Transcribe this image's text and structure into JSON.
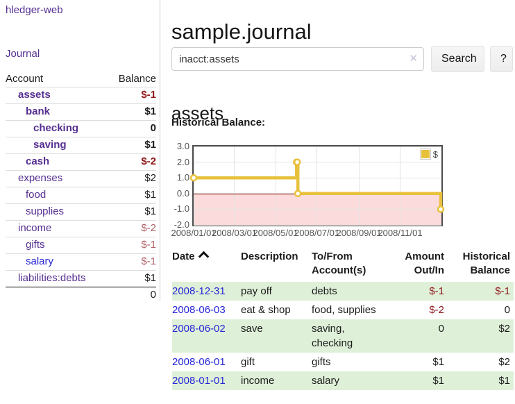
{
  "app": {
    "title": "hledger-web"
  },
  "sidebar": {
    "journal_link": "Journal",
    "balance_table": {
      "headers": {
        "account": "Account",
        "balance": "Balance"
      },
      "rows": [
        {
          "account": "assets",
          "balance": "$-1",
          "indent": 1,
          "bold": true,
          "balance_tone": "negative",
          "link_tone": "visited"
        },
        {
          "account": "bank",
          "balance": "$1",
          "indent": 2,
          "bold": true,
          "balance_tone": "normal",
          "link_tone": "visited"
        },
        {
          "account": "checking",
          "balance": "0",
          "indent": 3,
          "bold": true,
          "balance_tone": "normal",
          "link_tone": "visited"
        },
        {
          "account": "saving",
          "balance": "$1",
          "indent": 3,
          "bold": true,
          "balance_tone": "normal",
          "link_tone": "visited"
        },
        {
          "account": "cash",
          "balance": "$-2",
          "indent": 2,
          "bold": true,
          "balance_tone": "negative",
          "link_tone": "visited"
        },
        {
          "account": "expenses",
          "balance": "$2",
          "indent": 1,
          "bold": false,
          "balance_tone": "normal",
          "link_tone": "visited"
        },
        {
          "account": "food",
          "balance": "$1",
          "indent": 2,
          "bold": false,
          "balance_tone": "normal",
          "link_tone": "visited"
        },
        {
          "account": "supplies",
          "balance": "$1",
          "indent": 2,
          "bold": false,
          "balance_tone": "normal",
          "link_tone": "visited"
        },
        {
          "account": "income",
          "balance": "$-2",
          "indent": 1,
          "bold": false,
          "balance_tone": "negative-muted",
          "link_tone": "visited"
        },
        {
          "account": "gifts",
          "balance": "$-1",
          "indent": 2,
          "bold": false,
          "balance_tone": "negative-muted",
          "link_tone": "visited"
        },
        {
          "account": "salary",
          "balance": "$-1",
          "indent": 2,
          "bold": false,
          "balance_tone": "negative-muted",
          "link_tone": "unvisited"
        },
        {
          "account": "liabilities:debts",
          "balance": "$1",
          "indent": 1,
          "bold": false,
          "balance_tone": "normal",
          "link_tone": "visited"
        }
      ],
      "total": "0"
    }
  },
  "header": {
    "title": "sample.journal"
  },
  "search": {
    "value": "inacct:assets",
    "clear_icon": "✕",
    "button_label": "Search",
    "help_label": "?"
  },
  "account_page": {
    "heading": "assets",
    "chart_label": "Historical Balance:"
  },
  "chart_data": {
    "type": "line",
    "step": true,
    "title": "Historical Balance",
    "series": [
      {
        "name": "$",
        "color": "#e8c13c",
        "marker_fill": "#ffffff",
        "points": [
          [
            "2008-01-01",
            1
          ],
          [
            "2008-06-01",
            2
          ],
          [
            "2008-06-02",
            2
          ],
          [
            "2008-06-03",
            0
          ],
          [
            "2008-12-31",
            -1
          ]
        ]
      }
    ],
    "ylim": [
      -2,
      3
    ],
    "yticks": [
      "3.0",
      "2.0",
      "1.0",
      "0.0",
      "-1.0",
      "-2.0"
    ],
    "xticks": [
      "2008/01/01",
      "2008/03/01",
      "2008/05/01",
      "2008/07/01",
      "2008/09/01",
      "2008/11/01"
    ],
    "x_start": "2008-01-01",
    "x_days": 366,
    "grid": true,
    "legend_position": "top-right",
    "grid_color": "#e3e3e3",
    "border_color": "#4d4d4d",
    "negative_region_color": "#fbdbdb",
    "zero_line_color": "#8c1010",
    "axis_text_color": "#545454"
  },
  "register_table": {
    "headers": {
      "date": "Date",
      "description": "Description",
      "account_line1": "To/From",
      "account_line2": "Account(s)",
      "amount_line1": "Amount",
      "amount_line2": "Out/In",
      "balance_line1": "Historical",
      "balance_line2": "Balance"
    },
    "rows": [
      {
        "date": "2008-12-31",
        "description": "pay off",
        "accounts": "debts",
        "amount": "$-1",
        "amount_tone": "negative",
        "balance": "$-1",
        "balance_tone": "negative",
        "shaded": true
      },
      {
        "date": "2008-06-03",
        "description": "eat & shop",
        "accounts": "food, supplies",
        "amount": "$-2",
        "amount_tone": "negative",
        "balance": "0",
        "balance_tone": "normal",
        "shaded": false
      },
      {
        "date": "2008-06-02",
        "description": "save",
        "accounts": "saving, checking",
        "amount": "0",
        "amount_tone": "normal",
        "balance": "$2",
        "balance_tone": "normal",
        "shaded": true
      },
      {
        "date": "2008-06-01",
        "description": "gift",
        "accounts": "gifts",
        "amount": "$1",
        "amount_tone": "normal",
        "balance": "$2",
        "balance_tone": "normal",
        "shaded": false
      },
      {
        "date": "2008-01-01",
        "description": "income",
        "accounts": "salary",
        "amount": "$1",
        "amount_tone": "normal",
        "balance": "$1",
        "balance_tone": "normal",
        "shaded": true
      }
    ]
  }
}
